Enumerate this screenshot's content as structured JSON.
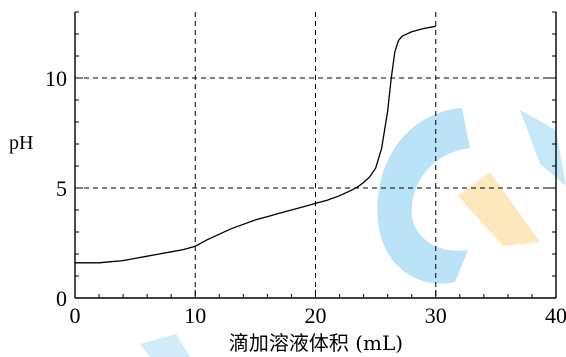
{
  "chart_data": {
    "type": "line",
    "title": "",
    "xlabel": "滴加溶液体积 (mL)",
    "ylabel": "pH",
    "xlim": [
      0,
      40
    ],
    "ylim": [
      0,
      13
    ],
    "x_ticks": [
      "0",
      "10",
      "20",
      "30",
      "40"
    ],
    "y_ticks": [
      "0",
      "5",
      "10"
    ],
    "grid": "dashed at x=10, 20, 30 and y=5, 10",
    "series": [
      {
        "x": [
          0,
          1,
          2,
          3,
          4,
          5,
          6,
          7,
          8,
          9,
          10,
          11,
          12,
          13,
          14,
          15,
          16,
          17,
          18,
          19,
          20,
          21,
          22,
          23,
          23.5,
          24,
          24.5,
          25,
          25.5,
          26,
          26.3,
          26.6,
          26.9,
          27.2,
          27.6,
          28,
          29,
          30
        ],
        "y": [
          1.6,
          1.6,
          1.6,
          1.65,
          1.7,
          1.8,
          1.9,
          2.0,
          2.1,
          2.2,
          2.35,
          2.65,
          2.9,
          3.15,
          3.35,
          3.55,
          3.7,
          3.85,
          4.0,
          4.15,
          4.3,
          4.45,
          4.65,
          4.9,
          5.05,
          5.25,
          5.5,
          5.9,
          6.8,
          8.5,
          10.0,
          11.2,
          11.7,
          11.9,
          12.0,
          12.1,
          12.25,
          12.35
        ]
      }
    ],
    "colors": {
      "line": "#000000",
      "grid": "#000000",
      "axis": "#000000"
    }
  },
  "watermark": {
    "colors": [
      "#aadcf5",
      "#fde3b0"
    ]
  }
}
